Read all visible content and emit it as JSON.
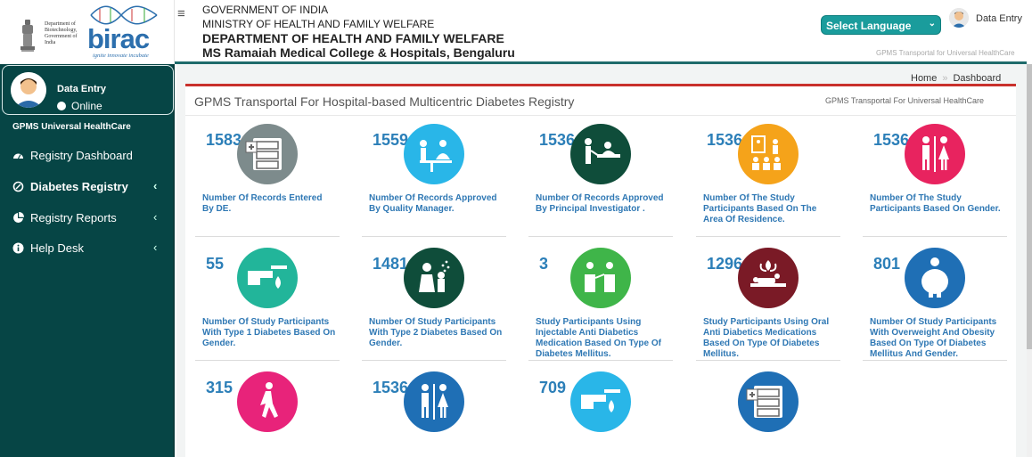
{
  "branding": {
    "dbt_text": "Department of Biotechnology, Government of India",
    "birac_word": "birac",
    "birac_tagline": "ignite innovate incubate"
  },
  "header": {
    "line1": "GOVERNMENT OF INDIA",
    "line2": "MINISTRY OF HEALTH AND FAMILY WELFARE",
    "line3": "DEPARTMENT OF HEALTH AND FAMILY WELFARE",
    "line4": "MS Ramaiah Medical College & Hospitals, Bengaluru",
    "language_select": "Select Language",
    "user_label": "Data Entry",
    "subtitle": "GPMS Transportal for Universal HealthCare"
  },
  "sidebar": {
    "user_name": "Data Entry",
    "status": "Online",
    "org": "GPMS Universal HealthCare",
    "items": [
      {
        "label": "Registry Dashboard",
        "icon": "dashboard-icon",
        "bold": false
      },
      {
        "label": "Diabetes Registry",
        "icon": "circle-icon",
        "bold": true
      },
      {
        "label": "Registry Reports",
        "icon": "pie-chart-icon",
        "bold": false
      },
      {
        "label": "Help Desk",
        "icon": "info-icon",
        "bold": false
      }
    ]
  },
  "breadcrumb": {
    "home": "Home",
    "current": "Dashboard"
  },
  "panel": {
    "title": "GPMS Transportal For Hospital-based Multicentric Diabetes Registry",
    "subtitle": "GPMS Transportal For Universal HealthCare"
  },
  "cards": [
    {
      "count": "1583",
      "label": "Number Of Records Entered By DE.",
      "icon": "records-icon",
      "color": "#7d8b8c"
    },
    {
      "count": "1559",
      "label": "Number Of Records Approved By Quality Manager.",
      "icon": "doctor-desk-icon",
      "color": "#29b6e8"
    },
    {
      "count": "1536",
      "label": "Number Of Records Approved By Principal Investigator .",
      "icon": "doctor-patient-icon",
      "color": "#0f4d3a"
    },
    {
      "count": "1536",
      "label": "Number Of The Study Participants Based On The Area Of Residence.",
      "icon": "classroom-icon",
      "color": "#f5a31a"
    },
    {
      "count": "1536",
      "label": "Number Of The Study Participants Based On Gender.",
      "icon": "gender-icon",
      "color": "#e8235f"
    },
    {
      "count": "55",
      "label": "Number Of Study Participants With Type 1 Diabetes Based On Gender.",
      "icon": "blood-drop-icon",
      "color": "#22b59a"
    },
    {
      "count": "1481",
      "label": "Number Of Study Participants With Type 2 Diabetes Based On Gender.",
      "icon": "spray-icon",
      "color": "#0f4d3a"
    },
    {
      "count": "3",
      "label": "Study Participants Using Injectable Anti Diabetics Medication Based On Type Of Diabetes Mellitus.",
      "icon": "injection-icon",
      "color": "#3fb549"
    },
    {
      "count": "1296",
      "label": "Study Participants Using Oral Anti Diabetics Medications Based On Type Of Diabetes Mellitus.",
      "icon": "herbal-icon",
      "color": "#7a1a26"
    },
    {
      "count": "801",
      "label": "Number Of Study Participants With Overweight And Obesity Based On Type Of Diabetes Mellitus And Gender.",
      "icon": "obesity-icon",
      "color": "#1f6fb5"
    },
    {
      "count": "315",
      "label": "",
      "icon": "walking-icon",
      "color": "#e8237a"
    },
    {
      "count": "1536",
      "label": "",
      "icon": "gender-icon",
      "color": "#1f6fb5"
    },
    {
      "count": "709",
      "label": "",
      "icon": "blood-drop-icon",
      "color": "#29b6e8"
    },
    {
      "count": "",
      "label": "",
      "icon": "records-icon",
      "color": "#1f6fb5"
    }
  ]
}
